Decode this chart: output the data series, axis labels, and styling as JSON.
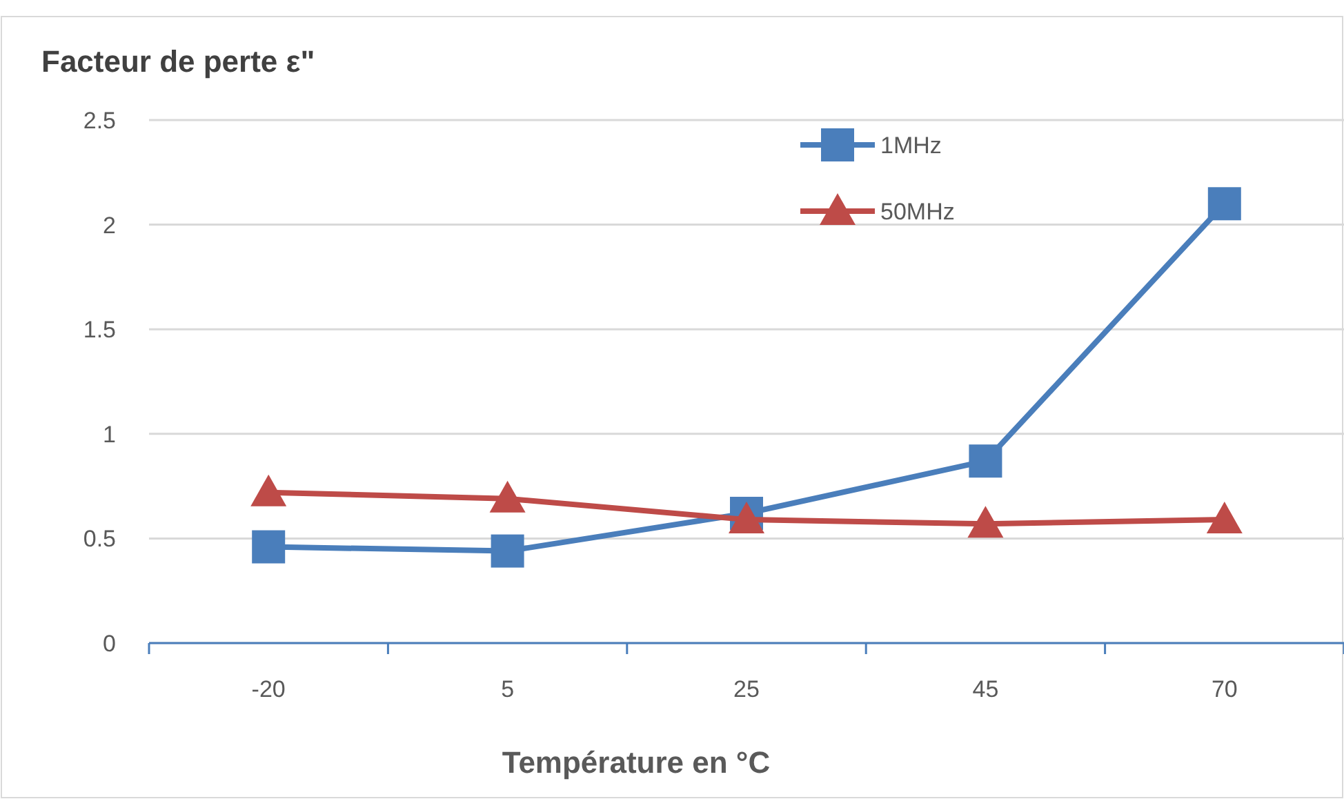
{
  "chart_data": {
    "type": "line",
    "title": "Facteur de perte ε\"",
    "xlabel": "Température en °C",
    "categories": [
      "-20",
      "5",
      "25",
      "45",
      "70"
    ],
    "series": [
      {
        "name": "1MHz",
        "color": "#4a7ebb",
        "marker": "square",
        "values": [
          0.46,
          0.44,
          0.62,
          0.87,
          2.1
        ]
      },
      {
        "name": "50MHz",
        "color": "#be4b48",
        "marker": "triangle",
        "values": [
          0.72,
          0.69,
          0.59,
          0.57,
          0.59
        ]
      }
    ],
    "ylim": [
      0,
      2.5
    ],
    "yticks": [
      0,
      0.5,
      1,
      1.5,
      2,
      2.5
    ],
    "grid": "y",
    "legend": "top"
  }
}
